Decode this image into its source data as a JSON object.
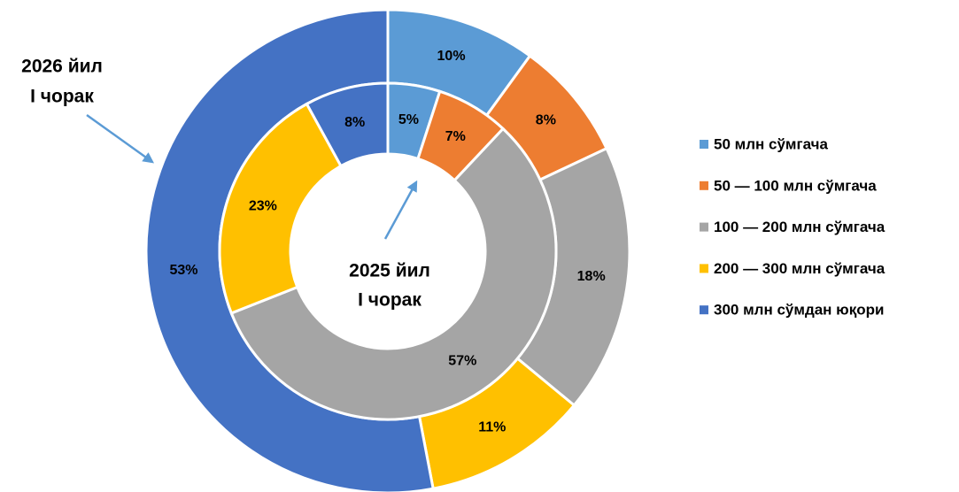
{
  "chart_data": {
    "type": "pie",
    "categories": [
      "50 млн сўмгача",
      "50 — 100 млн сўмгача",
      "100 — 200 млн сўмгача",
      "200 — 300 млн сўмгача",
      "300 млн сўмдан юқори"
    ],
    "colors": [
      "#5b9bd5",
      "#ed7d31",
      "#a5a5a5",
      "#ffc000",
      "#4472c4"
    ],
    "series": [
      {
        "name": [
          "2026 йил",
          "I чорак"
        ],
        "values": [
          10,
          8,
          18,
          11,
          53
        ],
        "value_labels": [
          "10%",
          "8%",
          "18%",
          "11%",
          "53%"
        ]
      },
      {
        "name": [
          "2025 йил",
          "I чорак"
        ],
        "values": [
          5,
          7,
          57,
          23,
          8
        ],
        "value_labels": [
          "5%",
          "7%",
          "57%",
          "23%",
          "8%"
        ]
      }
    ]
  }
}
